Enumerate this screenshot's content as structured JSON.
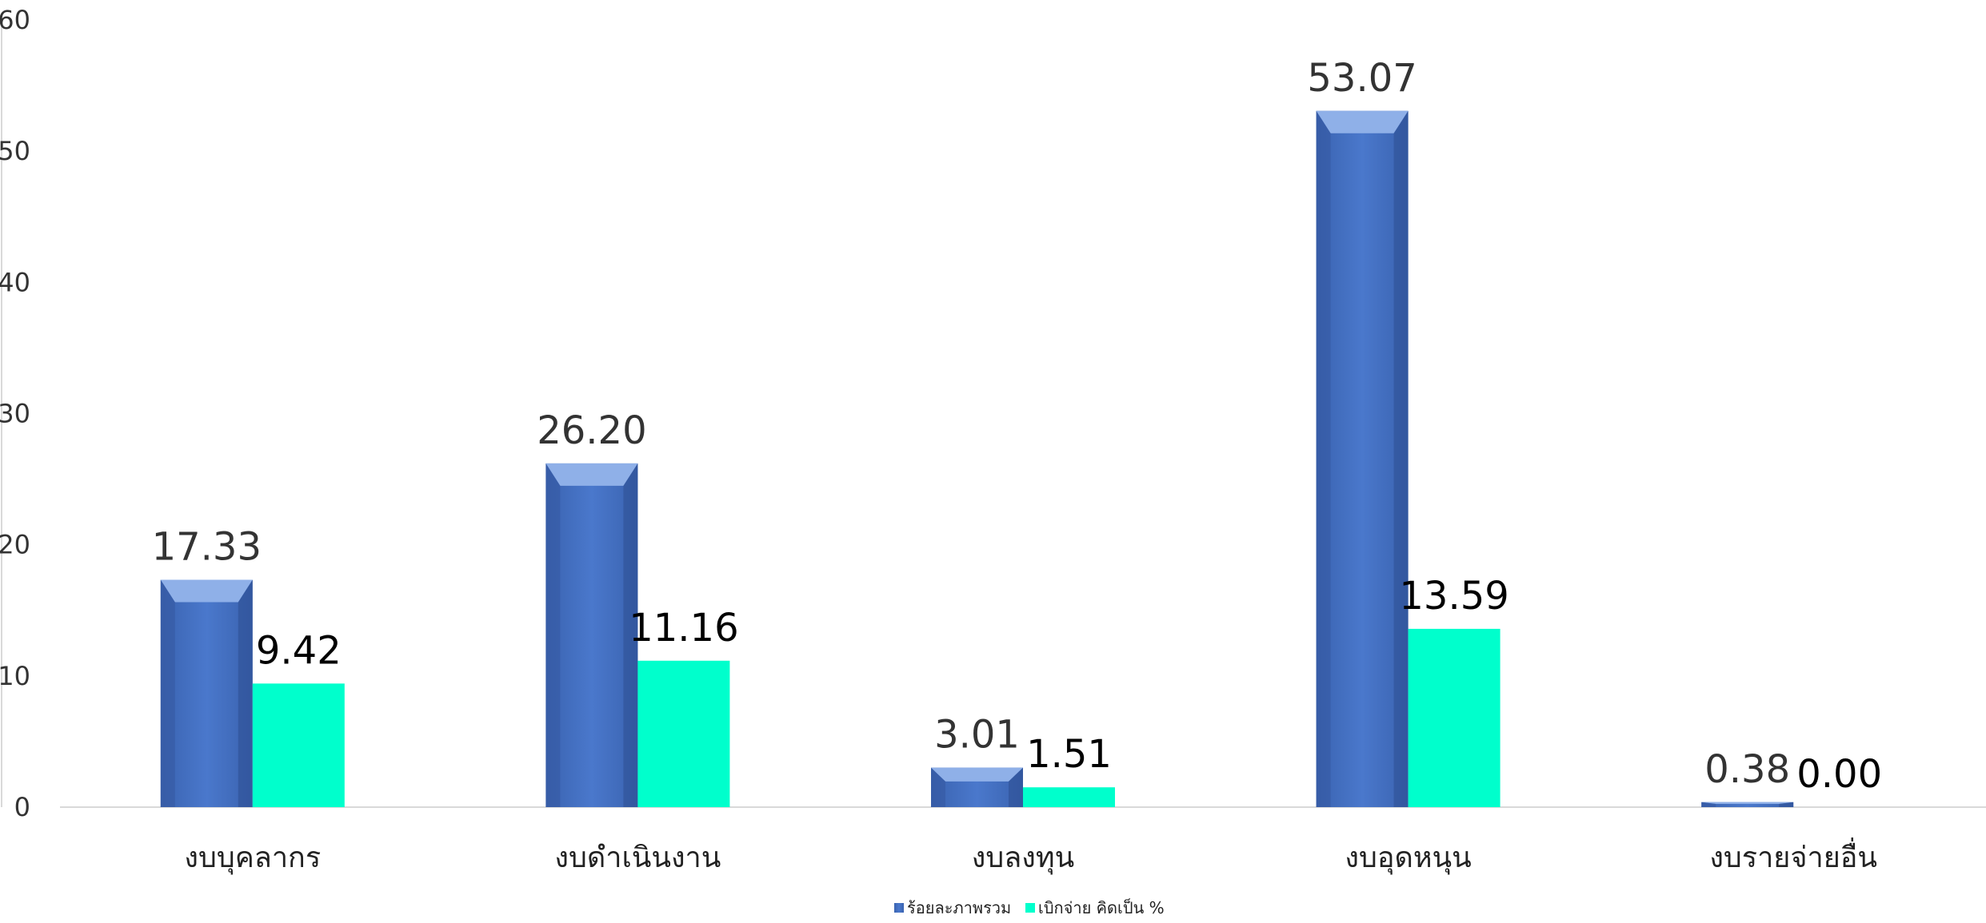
{
  "chart_data": {
    "type": "bar",
    "categories": [
      "งบบุคลากร",
      "งบดำเนินงาน",
      "งบลงทุน",
      "งบอุดหนุน",
      "งบรายจ่ายอื่น"
    ],
    "series": [
      {
        "name": "ร้อยละภาพรวม",
        "values": [
          17.33,
          26.2,
          3.01,
          53.07,
          0.38
        ],
        "labels": [
          "17.33",
          "26.20",
          "3.01",
          "53.07",
          "0.38"
        ],
        "color": "#4472C4"
      },
      {
        "name": "เบิกจ่าย คิดเป็น %",
        "values": [
          9.42,
          11.16,
          1.51,
          13.59,
          0.0
        ],
        "labels": [
          "9.42",
          "11.16",
          "1.51",
          "13.59",
          "0.00"
        ],
        "color": "#00FFCC"
      }
    ],
    "ylim": [
      0,
      60
    ],
    "yticks": [
      "0",
      "10",
      "20",
      "30",
      "40",
      "50",
      "60"
    ],
    "legend_position": "bottom",
    "grid": false
  }
}
